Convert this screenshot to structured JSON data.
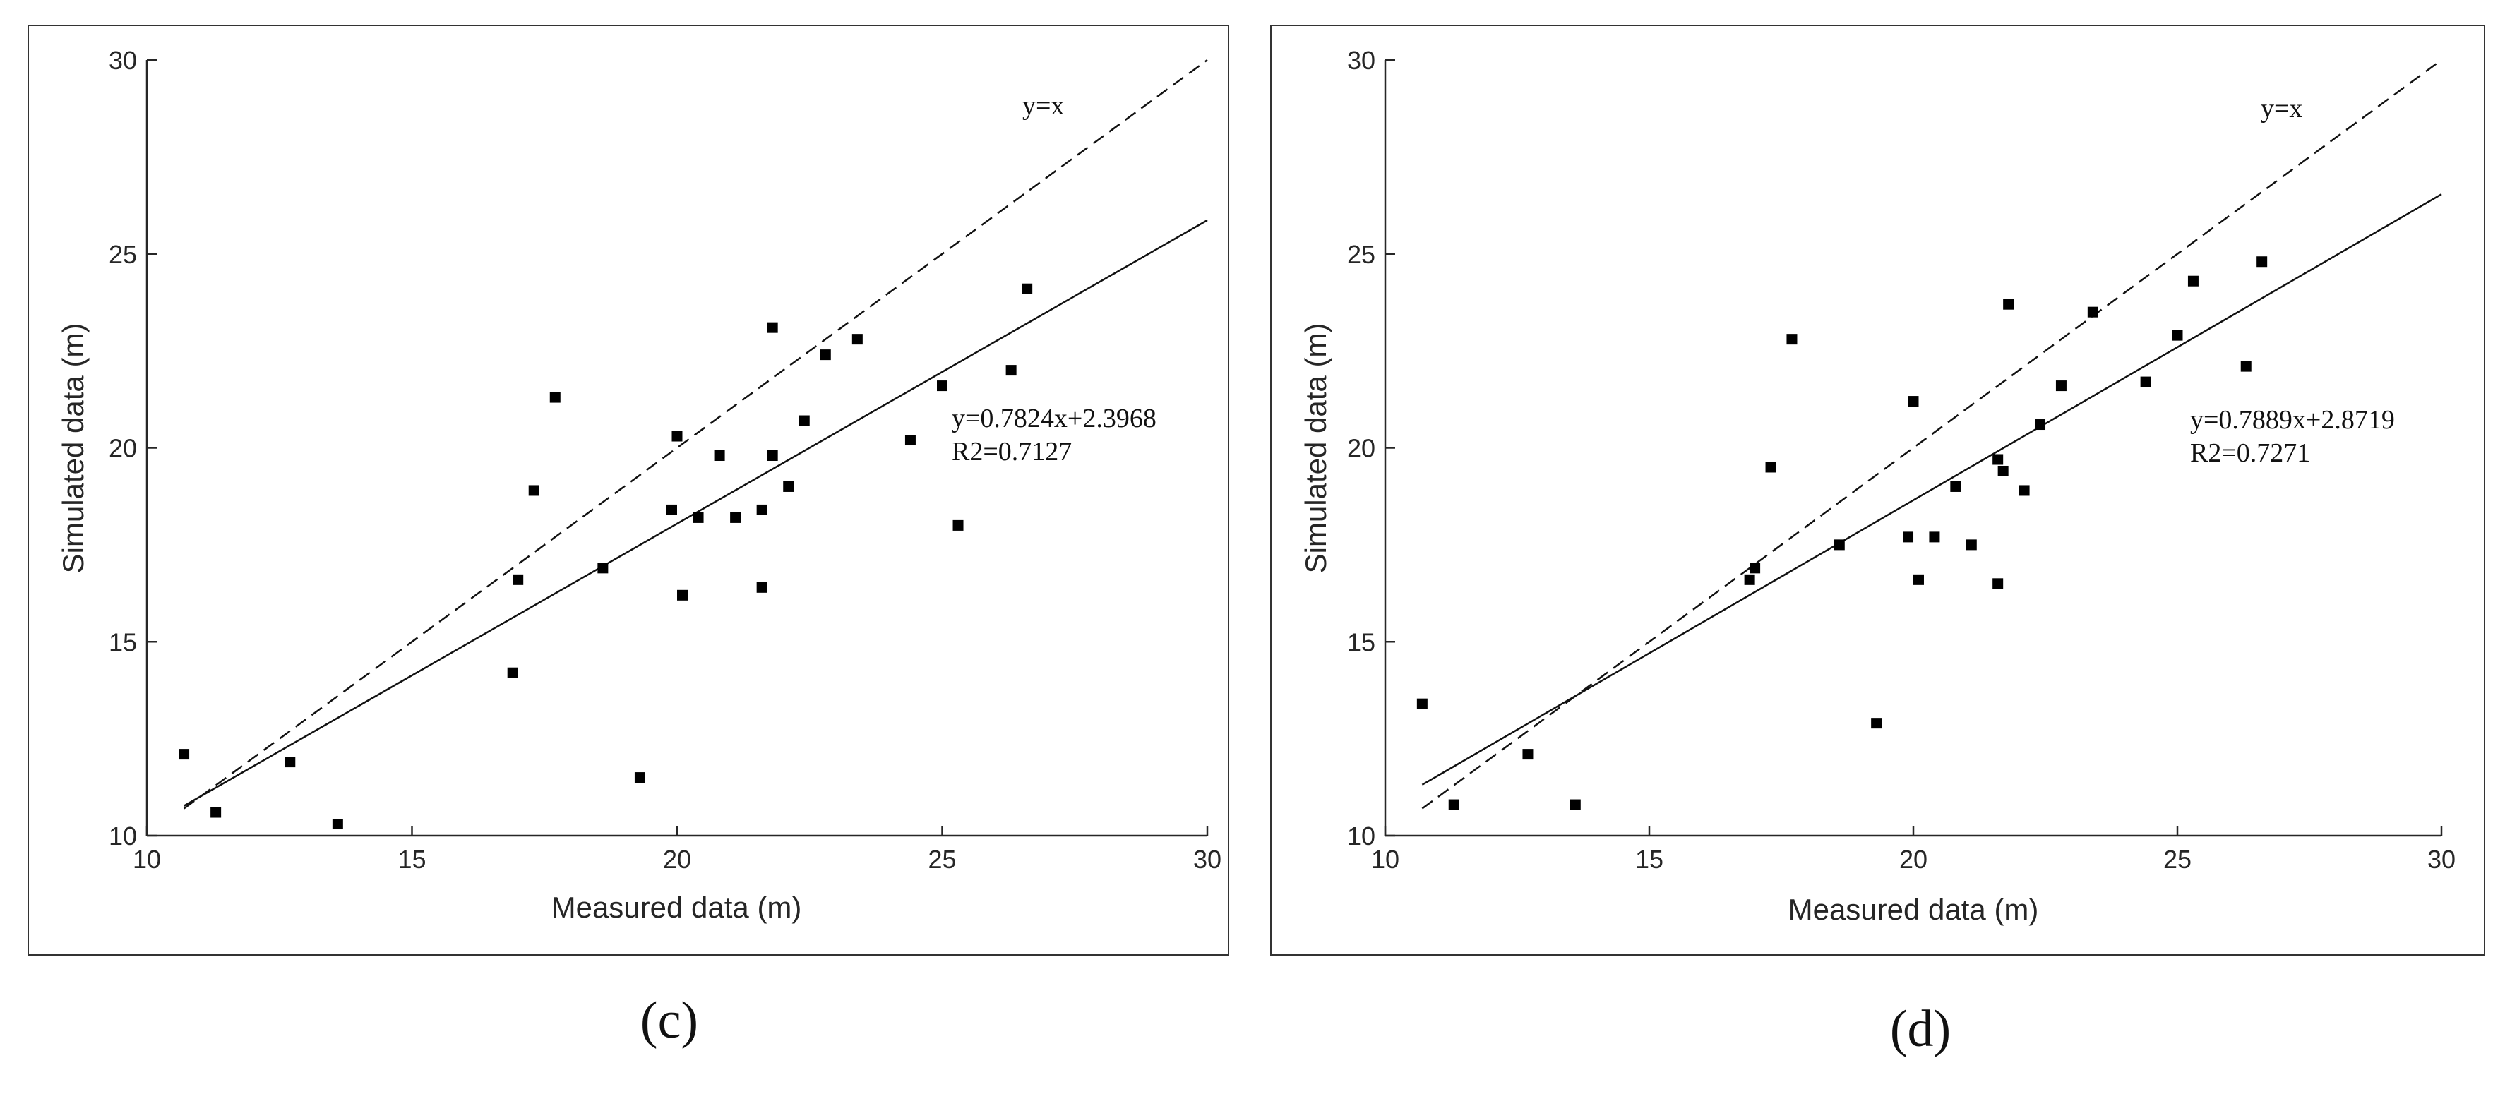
{
  "chart_data": [
    {
      "type": "scatter",
      "panel_label": "(c)",
      "xlabel": "Measured data (m)",
      "ylabel": "Simulated data (m)",
      "xlim": [
        10,
        30
      ],
      "ylim": [
        10,
        30
      ],
      "xticks": [
        "10",
        "15",
        "20",
        "25",
        "30"
      ],
      "yticks": [
        "10",
        "15",
        "20",
        "25",
        "30"
      ],
      "reference_line": {
        "label": "y=x",
        "slope": 1,
        "intercept": 0,
        "x_range": [
          10.7,
          30
        ]
      },
      "fit_line": {
        "slope": 0.7824,
        "intercept": 2.3968,
        "x_range": [
          10.7,
          30
        ]
      },
      "fit_equation": "y=0.7824x+2.3968",
      "r2_text": "R2=0.7127",
      "points": [
        [
          10.7,
          12.1
        ],
        [
          11.3,
          10.6
        ],
        [
          12.7,
          11.9
        ],
        [
          13.6,
          10.3
        ],
        [
          16.9,
          14.2
        ],
        [
          17.0,
          16.6
        ],
        [
          17.3,
          18.9
        ],
        [
          17.7,
          21.3
        ],
        [
          18.6,
          16.9
        ],
        [
          19.3,
          11.5
        ],
        [
          19.9,
          18.4
        ],
        [
          20.0,
          20.3
        ],
        [
          20.1,
          16.2
        ],
        [
          20.4,
          18.2
        ],
        [
          20.8,
          19.8
        ],
        [
          21.1,
          18.2
        ],
        [
          21.6,
          18.4
        ],
        [
          21.6,
          16.4
        ],
        [
          21.8,
          19.8
        ],
        [
          21.8,
          23.1
        ],
        [
          22.1,
          19.0
        ],
        [
          22.4,
          20.7
        ],
        [
          22.8,
          22.4
        ],
        [
          23.4,
          22.8
        ],
        [
          24.4,
          20.2
        ],
        [
          25.0,
          21.6
        ],
        [
          25.3,
          18.0
        ],
        [
          26.3,
          22.0
        ],
        [
          26.6,
          24.1
        ]
      ]
    },
    {
      "type": "scatter",
      "panel_label": "(d)",
      "xlabel": "Measured data (m)",
      "ylabel": "Simulated data (m)",
      "xlim": [
        10,
        30
      ],
      "ylim": [
        10,
        30
      ],
      "xticks": [
        "10",
        "15",
        "20",
        "25",
        "30"
      ],
      "yticks": [
        "10",
        "15",
        "20",
        "25",
        "30"
      ],
      "reference_line": {
        "label": "y=x",
        "slope": 1,
        "intercept": 0,
        "x_range": [
          10.7,
          30
        ]
      },
      "fit_line": {
        "slope": 0.7889,
        "intercept": 2.8719,
        "x_range": [
          10.7,
          30
        ]
      },
      "fit_equation": "y=0.7889x+2.8719",
      "r2_text": "R2=0.7271",
      "points": [
        [
          10.7,
          13.4
        ],
        [
          11.3,
          10.8
        ],
        [
          12.7,
          12.1
        ],
        [
          13.6,
          10.8
        ],
        [
          16.9,
          16.6
        ],
        [
          17.0,
          16.9
        ],
        [
          17.3,
          19.5
        ],
        [
          17.7,
          22.8
        ],
        [
          18.6,
          17.5
        ],
        [
          19.3,
          12.9
        ],
        [
          19.9,
          17.7
        ],
        [
          20.0,
          21.2
        ],
        [
          20.1,
          16.6
        ],
        [
          20.4,
          17.7
        ],
        [
          20.8,
          19.0
        ],
        [
          21.1,
          17.5
        ],
        [
          21.6,
          19.7
        ],
        [
          21.6,
          16.5
        ],
        [
          21.7,
          19.4
        ],
        [
          21.8,
          23.7
        ],
        [
          22.1,
          18.9
        ],
        [
          22.4,
          20.6
        ],
        [
          22.8,
          21.6
        ],
        [
          23.4,
          23.5
        ],
        [
          24.4,
          21.7
        ],
        [
          25.0,
          22.9
        ],
        [
          25.3,
          24.3
        ],
        [
          26.3,
          22.1
        ],
        [
          26.6,
          24.8
        ]
      ]
    }
  ]
}
